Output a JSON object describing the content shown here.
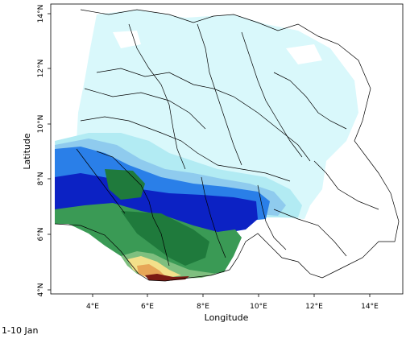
{
  "map": {
    "x_axis": {
      "label": "Longitude",
      "ticks": [
        "4°E",
        "6°E",
        "8°E",
        "10°E",
        "12°E",
        "14°E"
      ],
      "tick_values": [
        4,
        6,
        8,
        10,
        12,
        14
      ],
      "range": [
        2.5,
        15
      ]
    },
    "y_axis": {
      "label": "Latitude",
      "ticks": [
        "4°N",
        "6°N",
        "8°N",
        "10°N",
        "12°N",
        "14°N"
      ],
      "tick_values": [
        4,
        6,
        8,
        10,
        12,
        14
      ],
      "range": [
        3.8,
        14.3
      ]
    },
    "colors": {
      "very_light_cyan": "#d9f8fb",
      "light_cyan": "#b2ebf3",
      "sky_blue": "#8fcbee",
      "medium_blue": "#2a7fe8",
      "deep_blue": "#0c22c4",
      "dark_green": "#1f7a3c",
      "green": "#3a9a55",
      "light_green": "#7fbf7f",
      "yellow": "#f3e08a",
      "orange": "#e7a657",
      "dark_red": "#7a1a12",
      "boundary": "#000000"
    }
  },
  "caption": "1-10 Jan"
}
